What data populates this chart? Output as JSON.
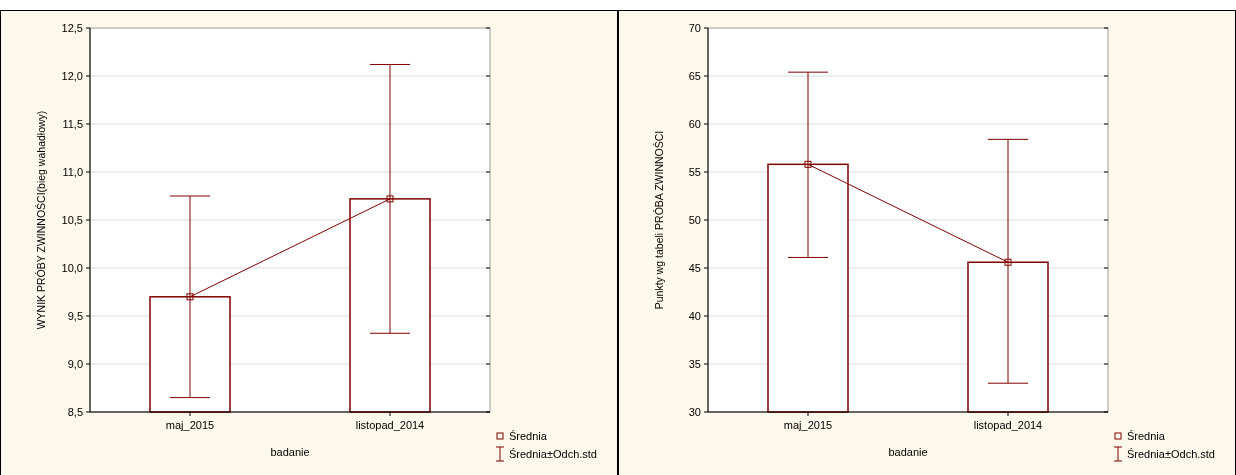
{
  "chart_data": [
    {
      "type": "bar",
      "categories": [
        "maj_2015",
        "listopad_2014"
      ],
      "xlabel": "badanie",
      "ylabel": "WYNIK PRÓBY ZWINNOŚCI(bieg wahadłowy)",
      "ylim": [
        8.5,
        12.5
      ],
      "yticks": [
        {
          "value": 8.5,
          "label": "8,5"
        },
        {
          "value": 9,
          "label": "9,0"
        },
        {
          "value": 9.5,
          "label": "9,5"
        },
        {
          "value": 10,
          "label": "10,0"
        },
        {
          "value": 10.5,
          "label": "10,5"
        },
        {
          "value": 11,
          "label": "11,0"
        },
        {
          "value": 11.5,
          "label": "11,5"
        },
        {
          "value": 12,
          "label": "12,0"
        },
        {
          "value": 12.5,
          "label": "12,5"
        }
      ],
      "grid": "y",
      "legend": "bottom right",
      "marker": "square",
      "annotations": [
        "Średnia±Odch.std"
      ],
      "series": [
        {
          "color": "#800000",
          "values": [
            9.7,
            10.72
          ]
        },
        {
          "type": "line",
          "name": "Średnia",
          "color": "#800000",
          "values": [
            9.7,
            10.72
          ],
          "errors": [
            [
              8.65,
              10.75
            ],
            [
              9.32,
              12.12
            ]
          ]
        }
      ]
    },
    {
      "type": "bar",
      "categories": [
        "maj_2015",
        "listopad_2014"
      ],
      "xlabel": "badanie",
      "ylabel": "Punkty wg tabeli PRÓBA ZWINNOŚCI",
      "ylim": [
        30,
        70
      ],
      "yticks": [
        30,
        35,
        40,
        45,
        50,
        55,
        60,
        65,
        70
      ],
      "grid": "y",
      "legend": "bottom right",
      "marker": "square",
      "annotations": [
        "Średnia±Odch.std"
      ],
      "series": [
        {
          "color": "#800000",
          "values": [
            55.8,
            45.6
          ]
        },
        {
          "type": "line",
          "name": "Średnia",
          "color": "#800000",
          "values": [
            55.8,
            45.6
          ],
          "errors": [
            [
              46.1,
              65.4
            ],
            [
              33.0,
              58.4
            ]
          ]
        }
      ]
    }
  ]
}
